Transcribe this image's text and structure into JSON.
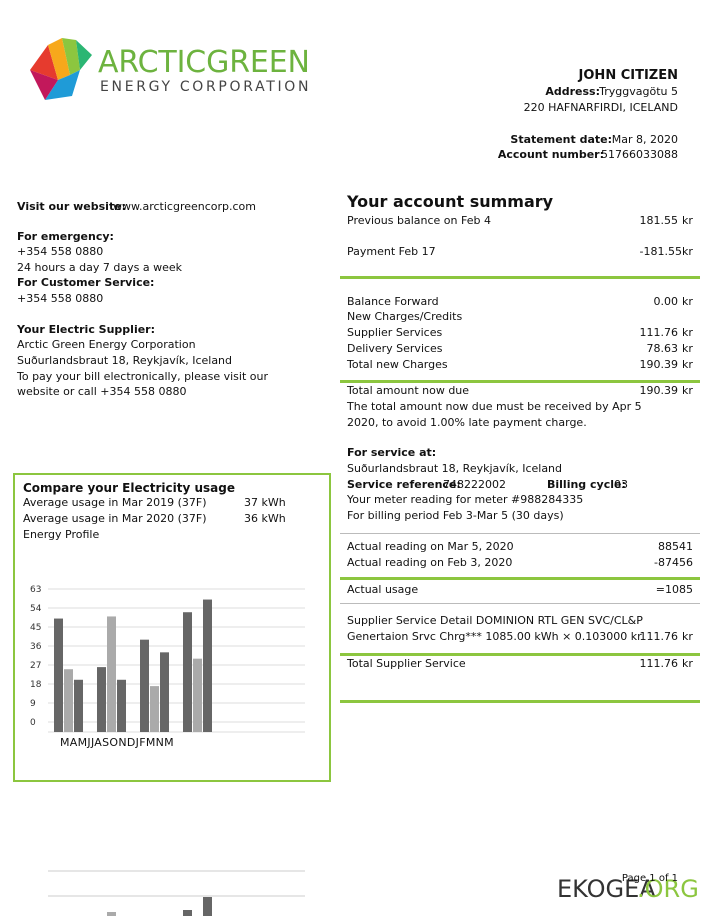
{
  "header": {
    "logo_name": "ARCTICGREEN",
    "logo_tagline": "ENERGY CORPORATION",
    "customer_name": "JOHN CITIZEN",
    "address_label": "Address:",
    "address_line1": "Tryggvagötu 5",
    "address_line2": "220 HAFNARFIRDI, ICELAND",
    "statement_date_label": "Statement date:",
    "statement_date": "Mar 8, 2020",
    "account_number_label": "Account number:",
    "account_number": "51766033088"
  },
  "contact": {
    "website_label": "Visit our website:",
    "website": "www.arcticgreencorp.com",
    "emergency_label": "For emergency:",
    "emergency_phone": "+354 558 0880",
    "emergency_hours": "24 hours a day 7 days a week",
    "service_label": "For Customer Service:",
    "service_phone": "+354 558 0880",
    "supplier_label": "Your Electric Supplier:",
    "supplier_name": "Arctic Green Energy Corporation",
    "supplier_address": "Suðurlandsbraut 18, Reykjavík, Iceland",
    "pay_line1": "To pay your bill electronically, please visit our",
    "pay_line2": "website or call +354 558 0880"
  },
  "summary": {
    "title": "Your account summary",
    "rows": [
      {
        "label": "Previous balance on Feb 4",
        "amount": "181.55",
        "unit": "kr"
      },
      {
        "label": "Payment Feb 17",
        "amount": "-181.55",
        "unit": "kr"
      },
      {
        "label": "Balance Forward",
        "amount": "0.00",
        "unit": "kr"
      },
      {
        "label": "New Charges/Credits"
      },
      {
        "label": "Supplier Services",
        "amount": "111.76",
        "unit": "kr"
      },
      {
        "label": "Delivery Services",
        "amount": "78.63",
        "unit": "kr"
      },
      {
        "label": "Total new Charges",
        "amount": "190.39",
        "unit": "kr"
      },
      {
        "label": "Total amount now due",
        "amount": "190.39",
        "unit": "kr"
      }
    ],
    "due_note_line1": "The total amount now due must be received by Apr 5",
    "due_note_line2": "2020, to avoid 1.00% late payment charge."
  },
  "service": {
    "label": "For service at:",
    "address": "Suðurlandsbraut 18, Reykjavík, Iceland",
    "reference_label": "Service reference:",
    "reference": "748222002",
    "cycle_label": "Billing cycle:",
    "cycle": "03",
    "meter_line": "Your meter reading for meter #988284335",
    "period_line": "For billing period Feb 3-Mar 5 (30 days)",
    "reading1_label": "Actual reading on Mar 5, 2020",
    "reading1": "88541",
    "reading2_label": "Actual reading on Feb 3, 2020",
    "reading2": "-87456",
    "usage_label": "Actual usage",
    "usage": "=1085",
    "detail_line1": "Supplier Service Detail DOMINION RTL GEN SVC/CL&P",
    "detail_line2": "Genertaion Srvc Chrg*** 1085.00 kWh × 0.103000 kr",
    "detail_amount": "111.76",
    "detail_unit": "kr",
    "total_label": "Total Supplier Service",
    "total_amount": "111.76",
    "total_unit": "kr"
  },
  "usage_compare": {
    "title": "Compare your Electricity usage",
    "row1_label": "Average usage in Mar 2019 (37F)",
    "row1_value": "37 kWh",
    "row2_label": "Average usage in Mar 2020 (37F)",
    "row2_value": "36 kWh",
    "profile_label": "Energy Profile"
  },
  "usage_chart": {
    "ylim": [
      0,
      63
    ],
    "yticks": [
      0,
      9,
      18,
      27,
      36,
      45,
      54,
      63
    ],
    "x_labels": "MAMJJASONDJFMNM",
    "series": [
      {
        "color": "#666666",
        "values": [
          49,
          26,
          39,
          52
        ]
      },
      {
        "color": "#aaaaaa",
        "values": [
          25,
          50,
          17,
          30
        ]
      },
      {
        "color": "#666666",
        "values": [
          20,
          20,
          33,
          58
        ]
      }
    ]
  },
  "footer": {
    "page": "Page 1 of 1",
    "watermark_main": "EKOGEA",
    "watermark_ext": ".ORG"
  }
}
